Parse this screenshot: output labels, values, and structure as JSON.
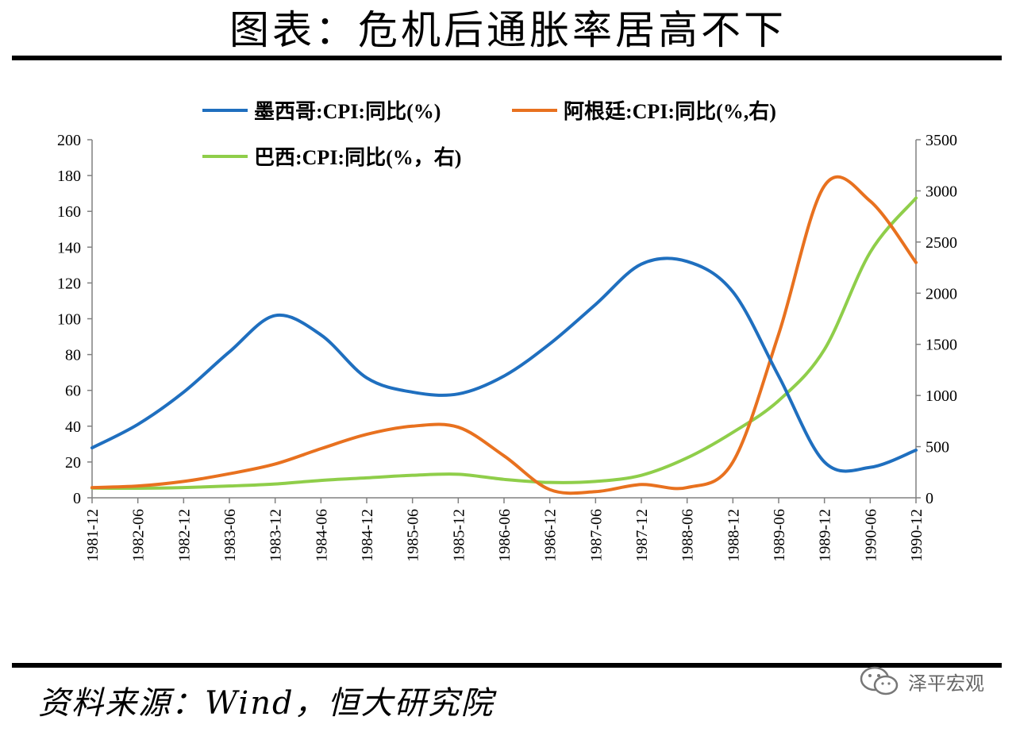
{
  "title": "图表：危机后通胀率居高不下",
  "source": "资料来源：Wind，恒大研究院",
  "watermark": "泽平宏观",
  "chart_data": {
    "type": "line",
    "x": [
      "1981-12",
      "1982-06",
      "1982-12",
      "1983-06",
      "1983-12",
      "1984-06",
      "1984-12",
      "1985-06",
      "1985-12",
      "1986-06",
      "1986-12",
      "1987-06",
      "1987-12",
      "1988-06",
      "1988-12",
      "1989-06",
      "1989-12",
      "1990-06",
      "1990-12"
    ],
    "y_left": {
      "ticks": [
        0,
        20,
        40,
        60,
        80,
        100,
        120,
        140,
        160,
        180,
        200
      ],
      "ylim": [
        0,
        200
      ]
    },
    "y_right": {
      "ticks": [
        0,
        500,
        1000,
        1500,
        2000,
        2500,
        3000,
        3500
      ],
      "ylim": [
        0,
        3500
      ]
    },
    "series": [
      {
        "name": "墨西哥:CPI:同比(%)",
        "axis": "left",
        "color": "#1f6fbf",
        "values": [
          27.9,
          41,
          59,
          81.5,
          101.8,
          91,
          67,
          59,
          58,
          68,
          86,
          108,
          130.5,
          132,
          115,
          68,
          20,
          17,
          26.6
        ]
      },
      {
        "name": "阿根廷:CPI:同比(%,右)",
        "axis": "right",
        "color": "#e8711f",
        "values": [
          100,
          115,
          160,
          235,
          330,
          480,
          620,
          700,
          690,
          410,
          80,
          60,
          130,
          100,
          350,
          1600,
          3050,
          2900,
          2300
        ]
      },
      {
        "name": "巴西:CPI:同比(%，右)",
        "axis": "right",
        "color": "#8fce4a",
        "values": [
          95,
          93,
          100,
          115,
          135,
          170,
          195,
          220,
          230,
          180,
          150,
          160,
          220,
          390,
          640,
          950,
          1450,
          2400,
          2930
        ]
      }
    ],
    "legend": "top"
  }
}
